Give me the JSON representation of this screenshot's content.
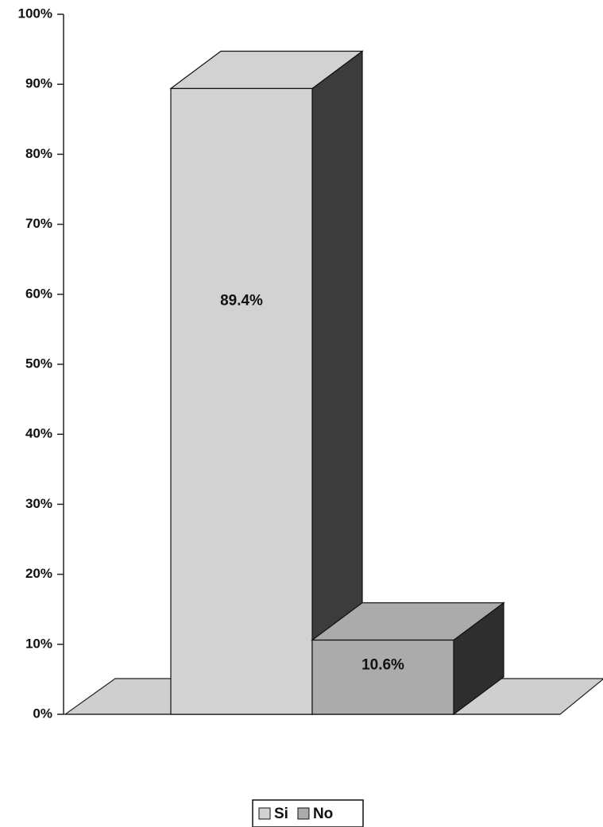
{
  "chart_data": {
    "type": "bar3d",
    "categories": [
      null
    ],
    "series": [
      {
        "name": "Si",
        "color": "#d2d2d2",
        "side": "#3c3c3c",
        "values": [
          89.4
        ],
        "value_labels": [
          "89.4%"
        ]
      },
      {
        "name": "No",
        "color": "#ababab",
        "side": "#2e2e2e",
        "values": [
          10.6
        ],
        "value_labels": [
          "10.6%"
        ]
      }
    ],
    "ylim": [
      0,
      100
    ],
    "yticks": [
      {
        "value": 0,
        "label": "0%"
      },
      {
        "value": 10,
        "label": "10%"
      },
      {
        "value": 20,
        "label": "20%"
      },
      {
        "value": 30,
        "label": "30%"
      },
      {
        "value": 40,
        "label": "40%"
      },
      {
        "value": 50,
        "label": "50%"
      },
      {
        "value": 60,
        "label": "60%"
      },
      {
        "value": 70,
        "label": "70%"
      },
      {
        "value": 80,
        "label": "80%"
      },
      {
        "value": 90,
        "label": "90%"
      },
      {
        "value": 100,
        "label": "100%"
      }
    ],
    "legend": "bottom"
  }
}
